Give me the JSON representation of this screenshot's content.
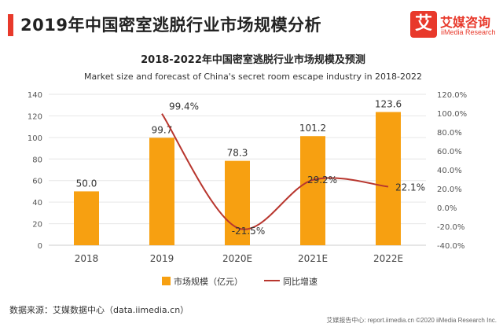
{
  "header": {
    "title": "2019年中国密室逃脱行业市场规模分析",
    "logo_mark": "艾",
    "logo_cn": "艾媒咨询",
    "logo_en": "iiMedia Research"
  },
  "footer": {
    "source": "数据来源：艾媒数据中心（data.iimedia.cn）",
    "copyright": "艾媒报告中心: report.iimedia.cn  ©2020  iiMedia Research  Inc."
  },
  "colors": {
    "bar": "#f7a011",
    "line": "#b8362e",
    "accent": "#e8392b",
    "grid": "#e6e6e6",
    "axis": "#cccccc"
  },
  "chart_data": {
    "type": "bar",
    "title": "2018-2022年中国密室逃脱行业市场规模及预测",
    "subtitle": "Market size and forecast of China's secret room escape industry in 2018-2022",
    "categories": [
      "2018",
      "2019",
      "2020E",
      "2021E",
      "2022E"
    ],
    "ylim": [
      0,
      140
    ],
    "y_ticks": [
      "0",
      "20",
      "40",
      "60",
      "80",
      "100",
      "120",
      "140"
    ],
    "y2lim": [
      -40,
      120
    ],
    "y2_ticks": [
      "-40.0%",
      "-20.0%",
      "0.0%",
      "20.0%",
      "40.0%",
      "60.0%",
      "80.0%",
      "100.0%",
      "120.0%"
    ],
    "series": [
      {
        "name": "市场规模（亿元）",
        "kind": "bar",
        "axis": "left",
        "values": [
          50.0,
          99.7,
          78.3,
          101.2,
          123.6
        ],
        "labels": [
          "50.0",
          "99.7",
          "78.3",
          "101.2",
          "123.6"
        ]
      },
      {
        "name": "同比增速",
        "kind": "line",
        "axis": "right",
        "values": [
          null,
          99.4,
          -21.5,
          29.2,
          22.1
        ],
        "labels": [
          "",
          "99.4%",
          "-21.5%",
          "29.2%",
          "22.1%"
        ]
      }
    ],
    "legend": [
      "市场规模（亿元）",
      "同比增速"
    ]
  }
}
